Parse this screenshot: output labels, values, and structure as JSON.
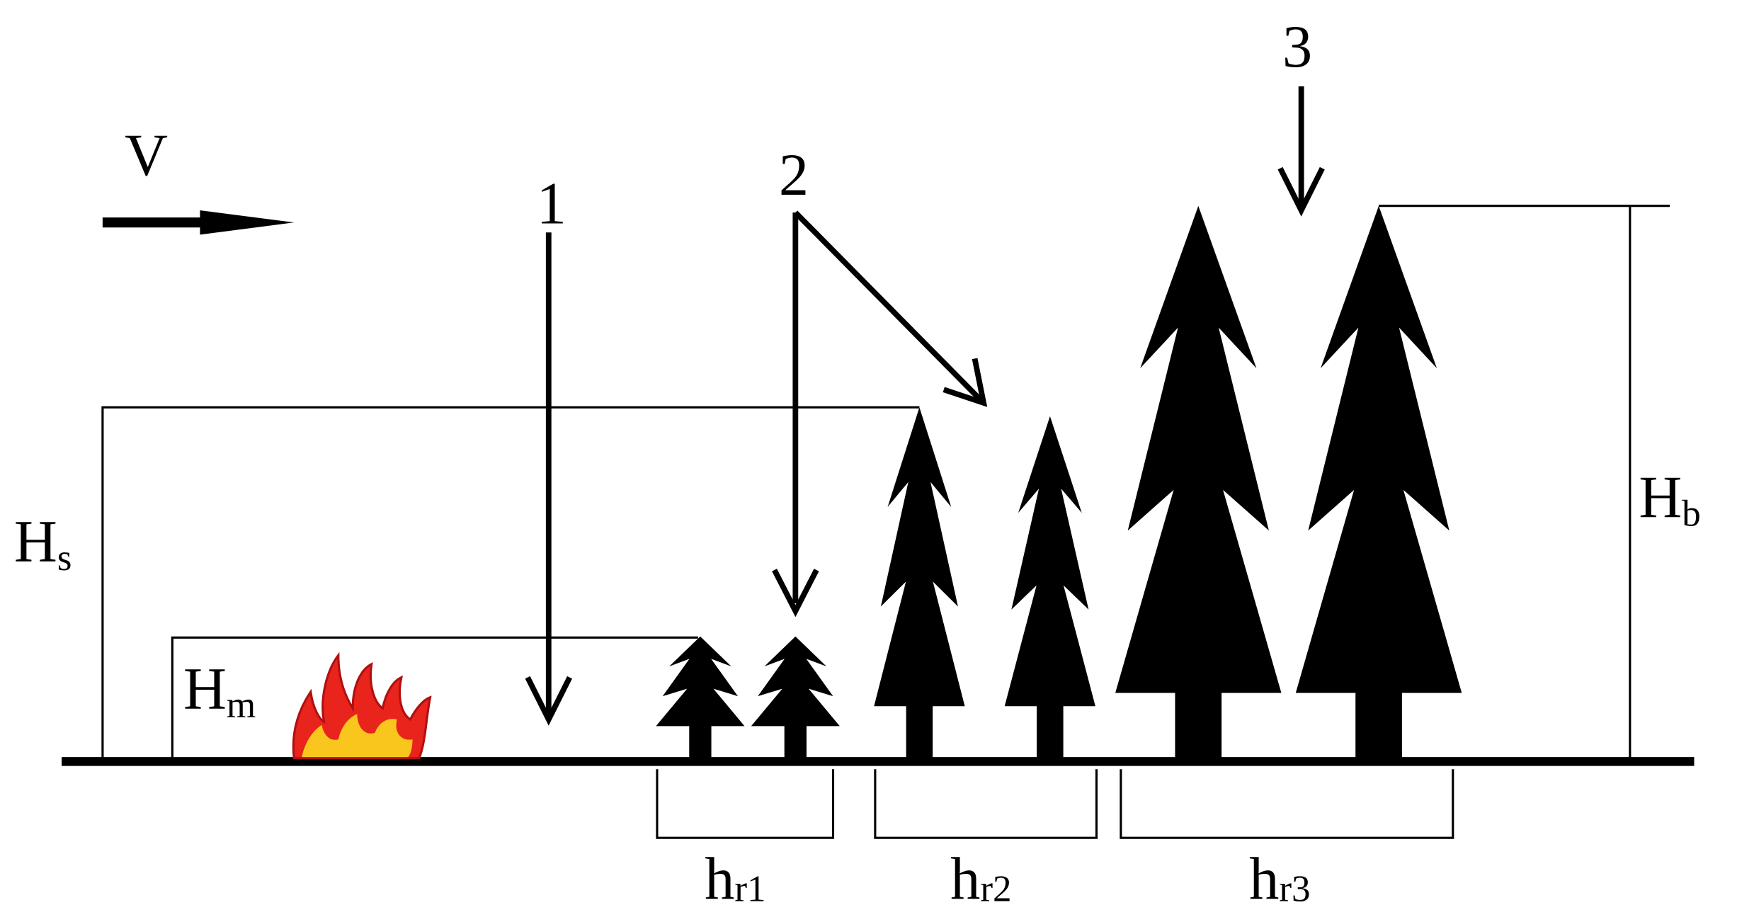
{
  "labels": {
    "v": "V",
    "one": "1",
    "two": "2",
    "three": "3",
    "hs": {
      "main": "H",
      "sub": "s"
    },
    "hm": {
      "main": "H",
      "sub": "m"
    },
    "hb": {
      "main": "H",
      "sub": "b"
    },
    "hr1": {
      "main": "h",
      "sub": "r1"
    },
    "hr2": {
      "main": "h",
      "sub": "r2"
    },
    "hr3": {
      "main": "h",
      "sub": "r3"
    }
  }
}
